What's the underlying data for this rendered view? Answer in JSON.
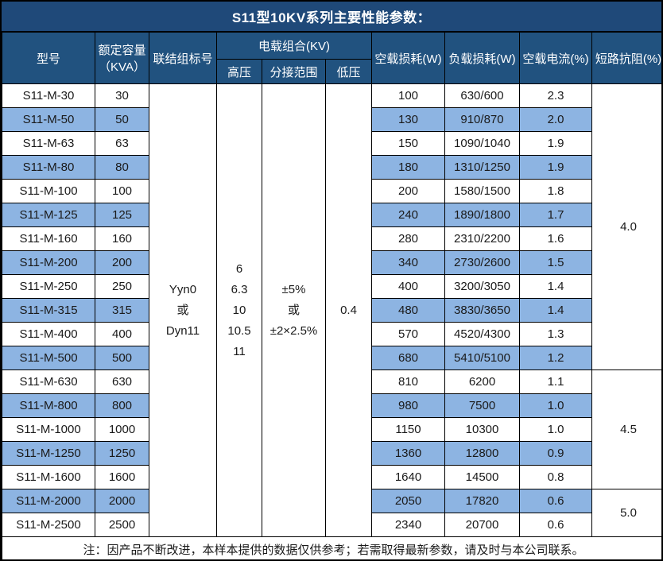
{
  "title": "S11型10KV系列主要性能参数：",
  "header": {
    "model": "型号",
    "capacity_line1": "额定容量",
    "capacity_line2": "（KVA）",
    "vector_group": "联结组标号",
    "voltage_combo": "电载组合(KV)",
    "hv": "高压",
    "tap_range": "分接范围",
    "lv": "低压",
    "no_load_loss": "空载损耗(W)",
    "load_loss": "负载损耗(W)",
    "no_load_current": "空载电流(%)",
    "impedance": "短路抗阻(%)"
  },
  "merged": {
    "vector_group": [
      "Yyn0",
      "或",
      "Dyn11"
    ],
    "hv": [
      "6",
      "6.3",
      "10",
      "10.5",
      "11"
    ],
    "tap_range": [
      "±5%",
      "或",
      "±2×2.5%"
    ],
    "lv": "0.4"
  },
  "impedance_groups": [
    {
      "value": "4.0",
      "rows": 12
    },
    {
      "value": "4.5",
      "rows": 5
    },
    {
      "value": "5.0",
      "rows": 2
    }
  ],
  "rows": [
    {
      "model": "S11-M-30",
      "capacity": "30",
      "no_load_loss": "100",
      "load_loss": "630/600",
      "no_load_current": "2.3"
    },
    {
      "model": "S11-M-50",
      "capacity": "50",
      "no_load_loss": "130",
      "load_loss": "910/870",
      "no_load_current": "2.0"
    },
    {
      "model": "S11-M-63",
      "capacity": "63",
      "no_load_loss": "150",
      "load_loss": "1090/1040",
      "no_load_current": "1.9"
    },
    {
      "model": "S11-M-80",
      "capacity": "80",
      "no_load_loss": "180",
      "load_loss": "1310/1250",
      "no_load_current": "1.9"
    },
    {
      "model": "S11-M-100",
      "capacity": "100",
      "no_load_loss": "200",
      "load_loss": "1580/1500",
      "no_load_current": "1.8"
    },
    {
      "model": "S11-M-125",
      "capacity": "125",
      "no_load_loss": "240",
      "load_loss": "1890/1800",
      "no_load_current": "1.7"
    },
    {
      "model": "S11-M-160",
      "capacity": "160",
      "no_load_loss": "280",
      "load_loss": "2310/2200",
      "no_load_current": "1.6"
    },
    {
      "model": "S11-M-200",
      "capacity": "200",
      "no_load_loss": "340",
      "load_loss": "2730/2600",
      "no_load_current": "1.5"
    },
    {
      "model": "S11-M-250",
      "capacity": "250",
      "no_load_loss": "400",
      "load_loss": "3200/3050",
      "no_load_current": "1.4"
    },
    {
      "model": "S11-M-315",
      "capacity": "315",
      "no_load_loss": "480",
      "load_loss": "3830/3650",
      "no_load_current": "1.4"
    },
    {
      "model": "S11-M-400",
      "capacity": "400",
      "no_load_loss": "570",
      "load_loss": "4520/4300",
      "no_load_current": "1.3"
    },
    {
      "model": "S11-M-500",
      "capacity": "500",
      "no_load_loss": "680",
      "load_loss": "5410/5100",
      "no_load_current": "1.2"
    },
    {
      "model": "S11-M-630",
      "capacity": "630",
      "no_load_loss": "810",
      "load_loss": "6200",
      "no_load_current": "1.1"
    },
    {
      "model": "S11-M-800",
      "capacity": "800",
      "no_load_loss": "980",
      "load_loss": "7500",
      "no_load_current": "1.0"
    },
    {
      "model": "S11-M-1000",
      "capacity": "1000",
      "no_load_loss": "1150",
      "load_loss": "10300",
      "no_load_current": "1.0"
    },
    {
      "model": "S11-M-1250",
      "capacity": "1250",
      "no_load_loss": "1360",
      "load_loss": "12800",
      "no_load_current": "0.9"
    },
    {
      "model": "S11-M-1600",
      "capacity": "1600",
      "no_load_loss": "1640",
      "load_loss": "14500",
      "no_load_current": "0.8"
    },
    {
      "model": "S11-M-2000",
      "capacity": "2000",
      "no_load_loss": "2050",
      "load_loss": "17820",
      "no_load_current": "0.6"
    },
    {
      "model": "S11-M-2500",
      "capacity": "2500",
      "no_load_loss": "2340",
      "load_loss": "20700",
      "no_load_current": "0.6"
    }
  ],
  "note": "注：因产品不断改进，本样本提供的数据仅供参考；若需取得最新参数，请及时与本公司联系。",
  "colors": {
    "title_bg": "#1F4979",
    "header_bg": "#21527F",
    "alt_row_bg": "#8DB4E2",
    "border": "#000000"
  }
}
